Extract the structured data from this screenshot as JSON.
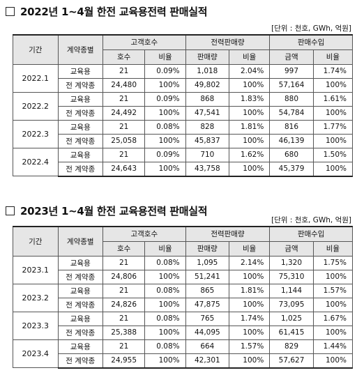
{
  "tables": [
    {
      "title": "2022년 1~4월 한전 교육용전력 판매실적",
      "unit": "[단위 : 천호, GWh, 억원]",
      "header": {
        "period": "기간",
        "contract": "계약종별",
        "customers": "고객호수",
        "sales_volume": "전력판매량",
        "revenue": "판매수입",
        "cust_count": "호수",
        "ratio": "비율",
        "volume": "판매량",
        "amount": "금액"
      },
      "rows": [
        {
          "period": "2022.1",
          "edu": {
            "label": "교육용",
            "cust": "21",
            "cust_r": "0.09%",
            "vol": "1,018",
            "vol_r": "2.04%",
            "amt": "997",
            "amt_r": "1.74%"
          },
          "all": {
            "label": "전 계약종",
            "cust": "24,480",
            "cust_r": "100%",
            "vol": "49,802",
            "vol_r": "100%",
            "amt": "57,164",
            "amt_r": "100%"
          }
        },
        {
          "period": "2022.2",
          "edu": {
            "label": "교육용",
            "cust": "21",
            "cust_r": "0.09%",
            "vol": "868",
            "vol_r": "1.83%",
            "amt": "880",
            "amt_r": "1.61%"
          },
          "all": {
            "label": "전 계약종",
            "cust": "24,492",
            "cust_r": "100%",
            "vol": "47,541",
            "vol_r": "100%",
            "amt": "54,784",
            "amt_r": "100%"
          }
        },
        {
          "period": "2022.3",
          "edu": {
            "label": "교육용",
            "cust": "21",
            "cust_r": "0.08%",
            "vol": "828",
            "vol_r": "1.81%",
            "amt": "816",
            "amt_r": "1.77%"
          },
          "all": {
            "label": "전 계약종",
            "cust": "25,058",
            "cust_r": "100%",
            "vol": "45,837",
            "vol_r": "100%",
            "amt": "46,139",
            "amt_r": "100%"
          }
        },
        {
          "period": "2022.4",
          "edu": {
            "label": "교육용",
            "cust": "21",
            "cust_r": "0.09%",
            "vol": "710",
            "vol_r": "1.62%",
            "amt": "680",
            "amt_r": "1.50%"
          },
          "all": {
            "label": "전 계약종",
            "cust": "24,643",
            "cust_r": "100%",
            "vol": "43,758",
            "vol_r": "100%",
            "amt": "45,379",
            "amt_r": "100%"
          }
        }
      ]
    },
    {
      "title": "2023년 1~4월 한전 교육용전력 판매실적",
      "unit": "[단위 : 천호, GWh, 억원]",
      "header": {
        "period": "기간",
        "contract": "계약종별",
        "customers": "고객호수",
        "sales_volume": "전력판매량",
        "revenue": "판매수입",
        "cust_count": "호수",
        "ratio": "비율",
        "volume": "판매량",
        "amount": "금액"
      },
      "rows": [
        {
          "period": "2023.1",
          "edu": {
            "label": "교육용",
            "cust": "21",
            "cust_r": "0.08%",
            "vol": "1,095",
            "vol_r": "2.14%",
            "amt": "1,320",
            "amt_r": "1.75%"
          },
          "all": {
            "label": "전 계약종",
            "cust": "24,806",
            "cust_r": "100%",
            "vol": "51,241",
            "vol_r": "100%",
            "amt": "75,310",
            "amt_r": "100%"
          }
        },
        {
          "period": "2023.2",
          "edu": {
            "label": "교육용",
            "cust": "21",
            "cust_r": "0.08%",
            "vol": "865",
            "vol_r": "1.81%",
            "amt": "1,144",
            "amt_r": "1.57%"
          },
          "all": {
            "label": "전 계약종",
            "cust": "24,826",
            "cust_r": "100%",
            "vol": "47,875",
            "vol_r": "100%",
            "amt": "73,095",
            "amt_r": "100%"
          }
        },
        {
          "period": "2023.3",
          "edu": {
            "label": "교육용",
            "cust": "21",
            "cust_r": "0.08%",
            "vol": "765",
            "vol_r": "1.74%",
            "amt": "1,025",
            "amt_r": "1.67%"
          },
          "all": {
            "label": "전 계약종",
            "cust": "25,388",
            "cust_r": "100%",
            "vol": "44,095",
            "vol_r": "100%",
            "amt": "61,415",
            "amt_r": "100%"
          }
        },
        {
          "period": "2023.4",
          "edu": {
            "label": "교육용",
            "cust": "21",
            "cust_r": "0.08%",
            "vol": "664",
            "vol_r": "1.57%",
            "amt": "829",
            "amt_r": "1.44%"
          },
          "all": {
            "label": "전 계약종",
            "cust": "24,955",
            "cust_r": "100%",
            "vol": "42,301",
            "vol_r": "100%",
            "amt": "57,627",
            "amt_r": "100%"
          }
        }
      ]
    }
  ]
}
